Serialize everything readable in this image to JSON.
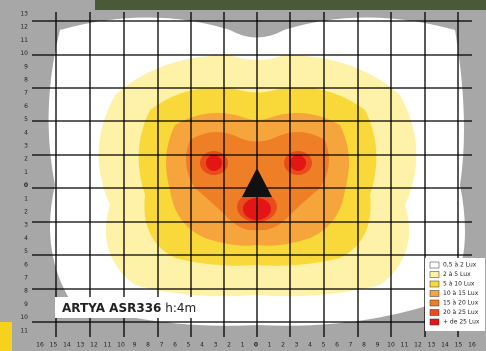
{
  "y_labels": [
    "13",
    "12",
    "11",
    "10",
    "9",
    "8",
    "7",
    "6",
    "5",
    "4",
    "3",
    "2",
    "1",
    "0",
    "1",
    "2",
    "3",
    "4",
    "5",
    "6",
    "7",
    "8",
    "9",
    "10",
    "11"
  ],
  "x_labels": [
    "16",
    "15",
    "14",
    "13",
    "12",
    "11",
    "10",
    "9",
    "8",
    "7",
    "6",
    "5",
    "4",
    "3",
    "2",
    "1",
    "0",
    "1",
    "2",
    "3",
    "4",
    "5",
    "6",
    "7",
    "8",
    "9",
    "10",
    "11",
    "12",
    "13",
    "14",
    "15",
    "16"
  ],
  "legend": [
    {
      "label": "0,5 à 2 Lux",
      "color": "#ffffff"
    },
    {
      "label": "2 à 5 Lux",
      "color": "#fdf2a8"
    },
    {
      "label": "5 à 10 Lux",
      "color": "#f9d93a"
    },
    {
      "label": "10 à 15 Lux",
      "color": "#f5a53c"
    },
    {
      "label": "15 à 20 Lux",
      "color": "#ef7f26"
    },
    {
      "label": "20 à 25 Lux",
      "color": "#e94b1c"
    },
    {
      "label": "+ de 25 Lux",
      "color": "#e31515"
    }
  ],
  "caption": {
    "name": "ARTYA ASR336",
    "height": "h:4m"
  }
}
